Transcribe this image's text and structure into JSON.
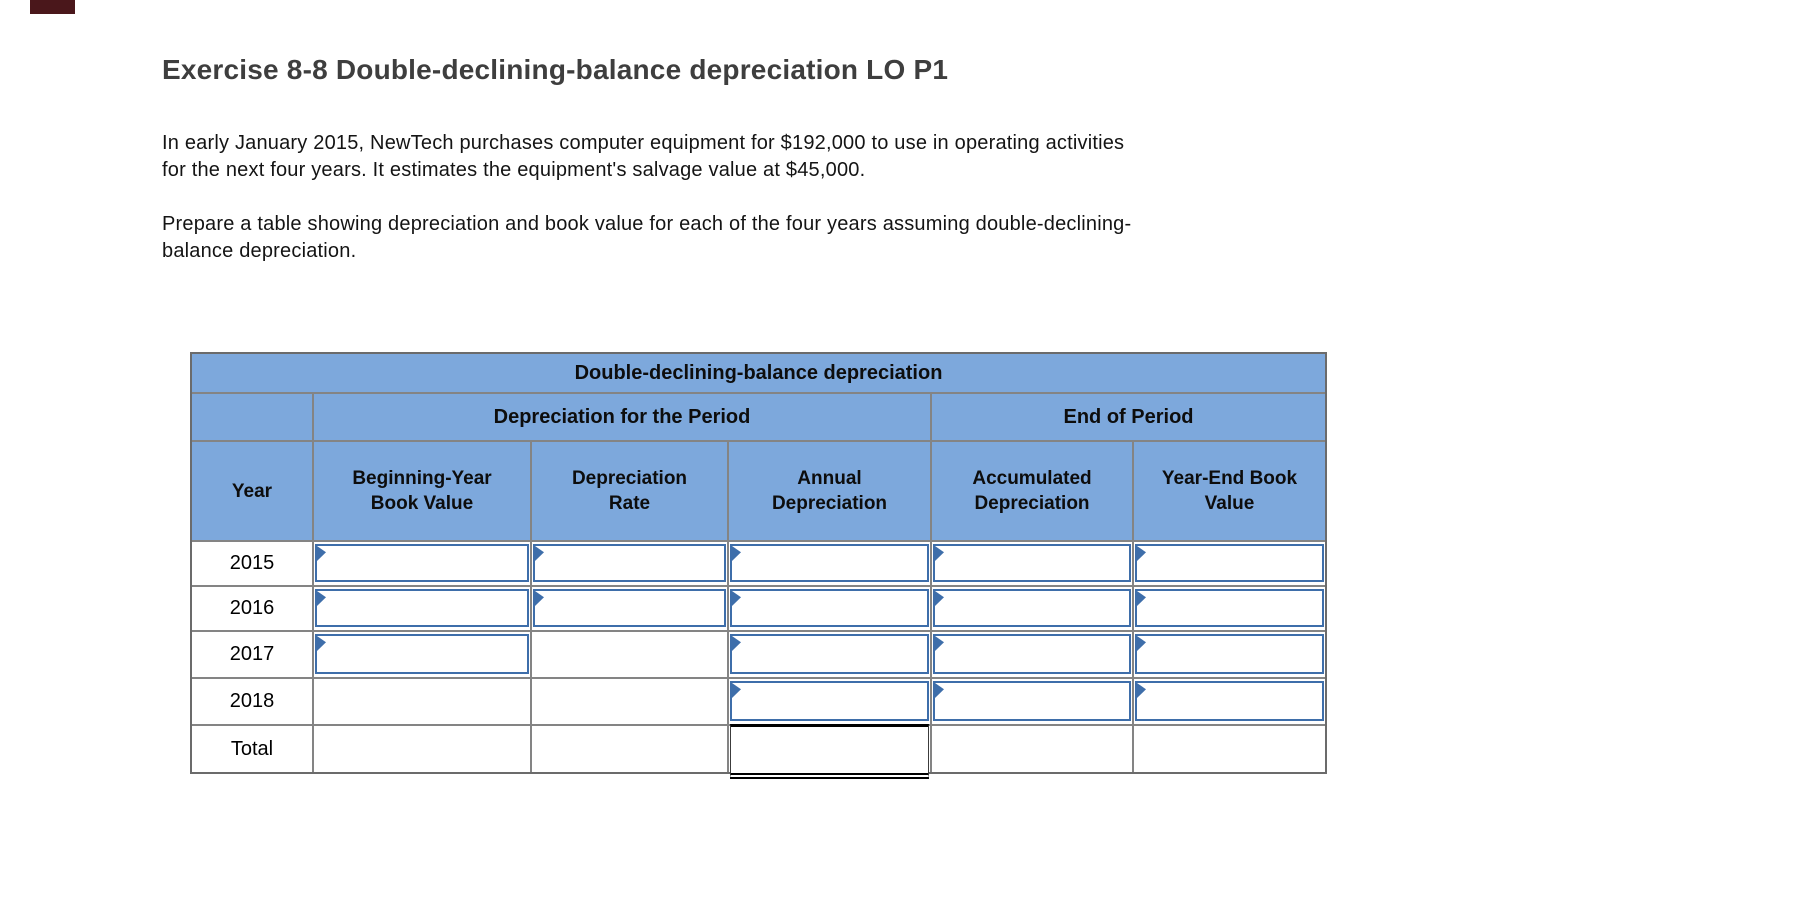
{
  "title": "Exercise 8-8 Double-declining-balance depreciation LO P1",
  "paragraphs": [
    "In early January 2015, NewTech purchases computer equipment for $192,000 to use in operating activities\nfor the next four years. It estimates the equipment's salvage value at $45,000.",
    "Prepare a table showing depreciation and book value for each of the four years assuming double-declining-\nbalance depreciation."
  ],
  "table": {
    "title": "Double-declining-balance depreciation",
    "group_headers": [
      "Depreciation for the Period",
      "End of Period"
    ],
    "columns": [
      "Year",
      "Beginning-Year\nBook Value",
      "Depreciation\nRate",
      "Annual\nDepreciation",
      "Accumulated\nDepreciation",
      "Year-End Book\nValue"
    ],
    "rows": [
      {
        "label": "2015",
        "cells": [
          "input",
          "input",
          "input",
          "input",
          "input"
        ]
      },
      {
        "label": "2016",
        "cells": [
          "input",
          "input",
          "input",
          "input",
          "input"
        ]
      },
      {
        "label": "2017",
        "cells": [
          "input",
          "empty",
          "input",
          "input",
          "input"
        ]
      },
      {
        "label": "2018",
        "cells": [
          "empty",
          "empty",
          "input",
          "input",
          "input"
        ]
      },
      {
        "label": "Total",
        "cells": [
          "empty",
          "empty",
          "total",
          "empty",
          "empty"
        ]
      }
    ],
    "input_value": "",
    "marker_icon": "cell-flag-icon"
  },
  "colors": {
    "header_bg": "#7da8dc",
    "grid_line": "#848484",
    "outer_border": "#6b6b6b",
    "input_border": "#3e6eaa",
    "top_marker": "#4a171b",
    "title_text": "#3e3e3e"
  }
}
